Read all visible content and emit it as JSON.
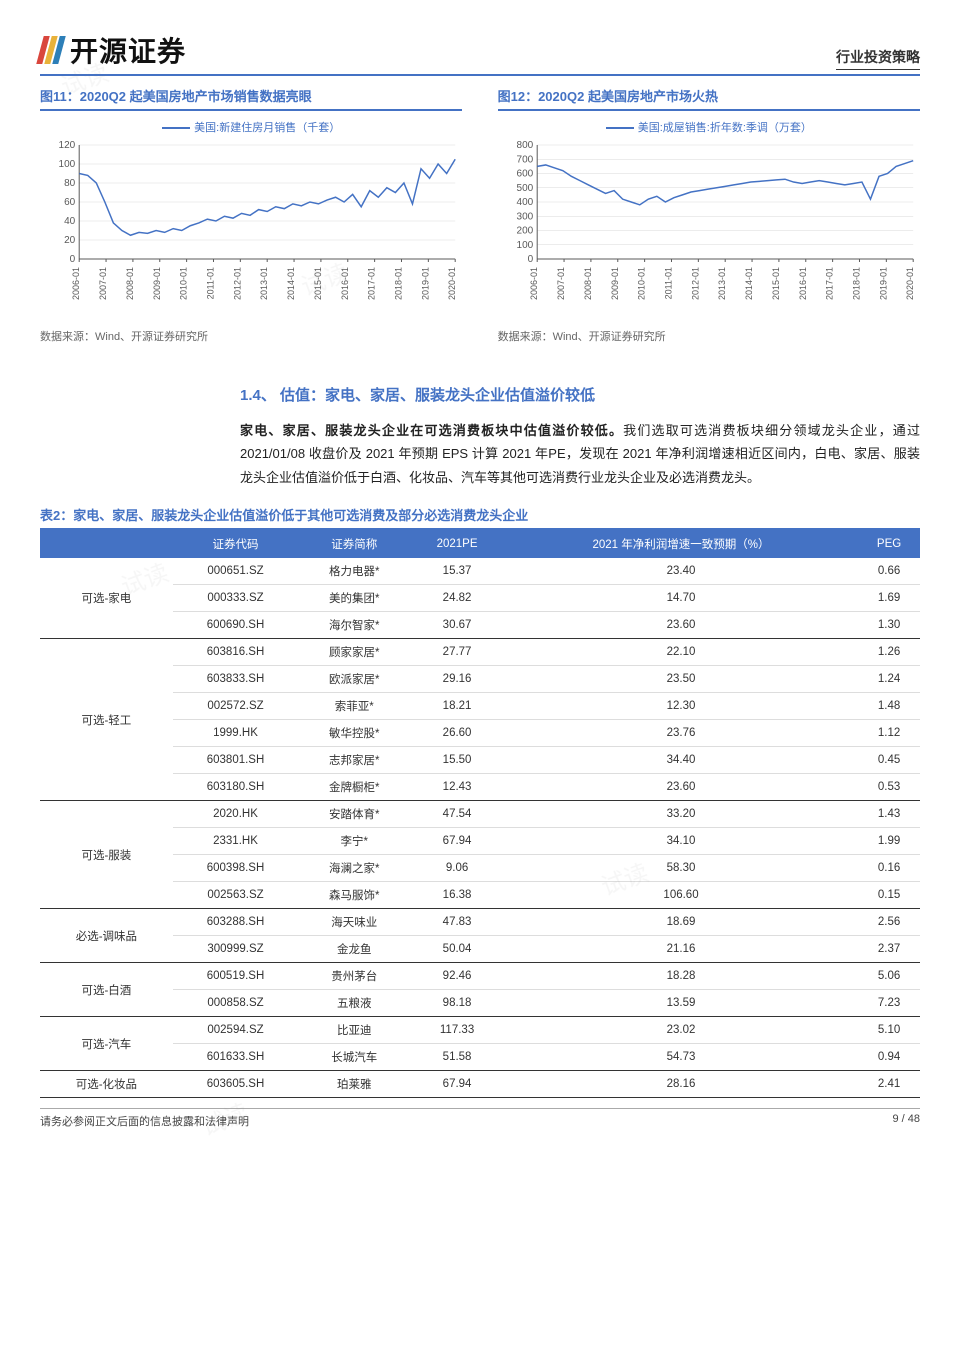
{
  "header": {
    "logo_text": "开源证券",
    "logo_colors": [
      "#d9463d",
      "#e8b23a",
      "#2d7fb8"
    ],
    "doc_type": "行业投资策略"
  },
  "chart1": {
    "title_prefix": "图11：",
    "title": "2020Q2 起美国房地产市场销售数据亮眼",
    "legend": "美国:新建住房月销售（千套）",
    "source": "数据来源：Wind、开源证券研究所",
    "type": "line",
    "line_color": "#4472c4",
    "grid_color": "#d9d9d9",
    "axis_color": "#595959",
    "background_color": "#ffffff",
    "ylim": [
      0,
      120
    ],
    "ytick_step": 20,
    "yticks": [
      0,
      20,
      40,
      60,
      80,
      100,
      120
    ],
    "x_labels": [
      "2006-01",
      "2007-01",
      "2008-01",
      "2009-01",
      "2010-01",
      "2011-01",
      "2012-01",
      "2013-01",
      "2014-01",
      "2015-01",
      "2016-01",
      "2017-01",
      "2018-01",
      "2019-01",
      "2020-01"
    ],
    "values": [
      90,
      88,
      80,
      60,
      38,
      30,
      25,
      28,
      27,
      30,
      28,
      32,
      30,
      35,
      38,
      42,
      40,
      45,
      43,
      48,
      46,
      52,
      50,
      55,
      53,
      58,
      56,
      60,
      58,
      62,
      65,
      60,
      68,
      55,
      72,
      65,
      75,
      70,
      80,
      58,
      95,
      85,
      100,
      90,
      105
    ]
  },
  "chart2": {
    "title_prefix": "图12：",
    "title": "2020Q2 起美国房地产市场火热",
    "legend": "美国:成屋销售:折年数:季调（万套）",
    "source": "数据来源：Wind、开源证券研究所",
    "type": "line",
    "line_color": "#4472c4",
    "grid_color": "#d9d9d9",
    "axis_color": "#595959",
    "background_color": "#ffffff",
    "ylim": [
      0,
      800
    ],
    "ytick_step": 100,
    "yticks": [
      0,
      100,
      200,
      300,
      400,
      500,
      600,
      700,
      800
    ],
    "x_labels": [
      "2006-01",
      "2007-01",
      "2008-01",
      "2009-01",
      "2010-01",
      "2011-01",
      "2012-01",
      "2013-01",
      "2014-01",
      "2015-01",
      "2016-01",
      "2017-01",
      "2018-01",
      "2019-01",
      "2020-01"
    ],
    "values": [
      650,
      660,
      640,
      620,
      580,
      550,
      520,
      490,
      460,
      480,
      420,
      400,
      380,
      420,
      440,
      400,
      430,
      450,
      470,
      480,
      490,
      500,
      510,
      520,
      530,
      540,
      545,
      550,
      555,
      560,
      540,
      530,
      540,
      550,
      540,
      530,
      520,
      530,
      540,
      420,
      580,
      600,
      650,
      670,
      690
    ]
  },
  "section": {
    "number": "1.4、",
    "title": "估值：家电、家居、服装龙头企业估值溢价较低"
  },
  "paragraph": {
    "bold": "家电、家居、服装龙头企业在可选消费板块中估值溢价较低。",
    "rest": "我们选取可选消费板块细分领域龙头企业，通过 2021/01/08 收盘价及 2021 年预期 EPS 计算 2021 年PE，发现在 2021 年净利润增速相近区间内，白电、家居、服装龙头企业估值溢价低于白酒、化妆品、汽车等其他可选消费行业龙头企业及必选消费龙头。"
  },
  "table": {
    "title_prefix": "表2：",
    "title": "家电、家居、服装龙头企业估值溢价低于其他可选消费及部分必选消费龙头企业",
    "columns": [
      "",
      "证券代码",
      "证券简称",
      "2021PE",
      "2021 年净利润增速一致预期（%）",
      "PEG"
    ],
    "groups": [
      {
        "label": "可选-家电",
        "rows": [
          [
            "000651.SZ",
            "格力电器*",
            "15.37",
            "23.40",
            "0.66"
          ],
          [
            "000333.SZ",
            "美的集团*",
            "24.82",
            "14.70",
            "1.69"
          ],
          [
            "600690.SH",
            "海尔智家*",
            "30.67",
            "23.60",
            "1.30"
          ]
        ]
      },
      {
        "label": "可选-轻工",
        "rows": [
          [
            "603816.SH",
            "顾家家居*",
            "27.77",
            "22.10",
            "1.26"
          ],
          [
            "603833.SH",
            "欧派家居*",
            "29.16",
            "23.50",
            "1.24"
          ],
          [
            "002572.SZ",
            "索菲亚*",
            "18.21",
            "12.30",
            "1.48"
          ],
          [
            "1999.HK",
            "敏华控股*",
            "26.60",
            "23.76",
            "1.12"
          ],
          [
            "603801.SH",
            "志邦家居*",
            "15.50",
            "34.40",
            "0.45"
          ],
          [
            "603180.SH",
            "金牌橱柜*",
            "12.43",
            "23.60",
            "0.53"
          ]
        ]
      },
      {
        "label": "可选-服装",
        "rows": [
          [
            "2020.HK",
            "安踏体育*",
            "47.54",
            "33.20",
            "1.43"
          ],
          [
            "2331.HK",
            "李宁*",
            "67.94",
            "34.10",
            "1.99"
          ],
          [
            "600398.SH",
            "海澜之家*",
            "9.06",
            "58.30",
            "0.16"
          ],
          [
            "002563.SZ",
            "森马服饰*",
            "16.38",
            "106.60",
            "0.15"
          ]
        ]
      },
      {
        "label": "必选-调味品",
        "rows": [
          [
            "603288.SH",
            "海天味业",
            "47.83",
            "18.69",
            "2.56"
          ],
          [
            "300999.SZ",
            "金龙鱼",
            "50.04",
            "21.16",
            "2.37"
          ]
        ]
      },
      {
        "label": "可选-白酒",
        "rows": [
          [
            "600519.SH",
            "贵州茅台",
            "92.46",
            "18.28",
            "5.06"
          ],
          [
            "000858.SZ",
            "五粮液",
            "98.18",
            "13.59",
            "7.23"
          ]
        ]
      },
      {
        "label": "可选-汽车",
        "rows": [
          [
            "002594.SZ",
            "比亚迪",
            "117.33",
            "23.02",
            "5.10"
          ],
          [
            "601633.SH",
            "长城汽车",
            "51.58",
            "54.73",
            "0.94"
          ]
        ]
      },
      {
        "label": "可选-化妆品",
        "rows": [
          [
            "603605.SH",
            "珀莱雅",
            "67.94",
            "28.16",
            "2.41"
          ]
        ]
      }
    ]
  },
  "footer": {
    "disclaimer": "请务必参阅正文后面的信息披露和法律声明",
    "page": "9 / 48"
  },
  "watermark_text": "试读"
}
